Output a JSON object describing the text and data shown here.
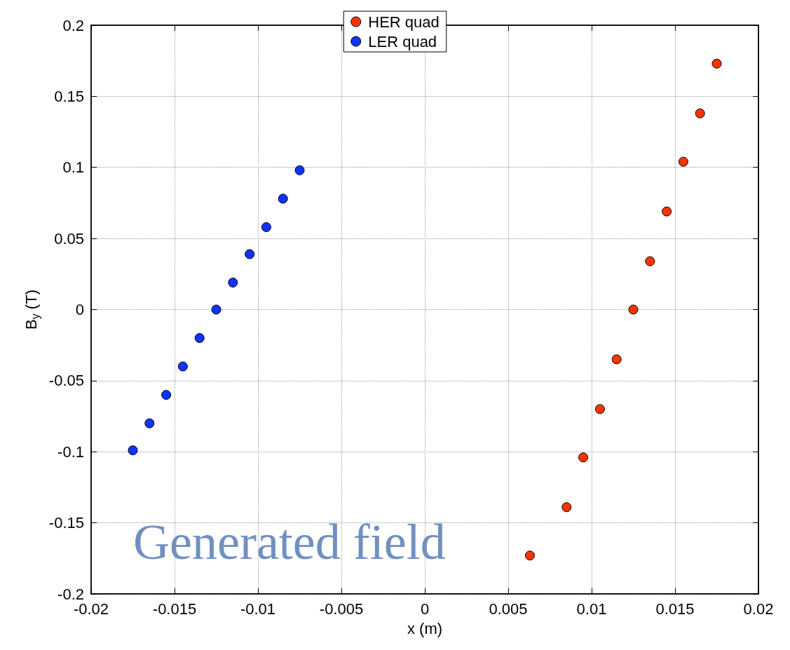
{
  "chart_data": {
    "type": "scatter",
    "xlabel": "x (m)",
    "ylabel": "B$_{y}$ (T)",
    "annotations": [
      "Generated field"
    ],
    "xlim": [
      -0.02,
      0.02
    ],
    "xticks": [
      -0.02,
      -0.015,
      -0.01,
      -0.005,
      0,
      0.005,
      0.01,
      0.015,
      0.02
    ],
    "ylim": [
      -0.2,
      0.2
    ],
    "yticks": [
      -0.2,
      -0.15,
      -0.1,
      -0.05,
      0,
      0.05,
      0.1,
      0.15,
      0.2
    ],
    "grid": true,
    "legend": "top",
    "marker": "circle",
    "series": [
      {
        "name": "HER quad",
        "color": "#ff3300",
        "x": [
          0.0063,
          0.0085,
          0.0095,
          0.0105,
          0.0115,
          0.0125,
          0.0135,
          0.0145,
          0.0155,
          0.0165,
          0.0175
        ],
        "values": [
          -0.173,
          -0.139,
          -0.104,
          -0.07,
          -0.035,
          0,
          0.034,
          0.069,
          0.104,
          0.138,
          0.173
        ]
      },
      {
        "name": "LER quad",
        "color": "#1133ff",
        "x": [
          -0.0175,
          -0.0165,
          -0.0155,
          -0.0145,
          -0.0135,
          -0.0125,
          -0.0115,
          -0.0105,
          -0.0095,
          -0.0085,
          -0.0075
        ],
        "values": [
          -0.099,
          -0.08,
          -0.06,
          -0.04,
          -0.02,
          0,
          0.019,
          0.039,
          0.058,
          0.078,
          0.098
        ]
      }
    ]
  }
}
